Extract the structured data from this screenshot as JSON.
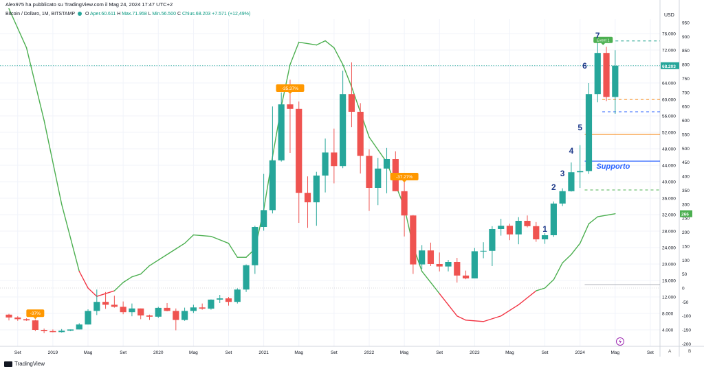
{
  "header": {
    "publisher_line": "Alex975 ha pubblicato su TradingView.com il Mag 24, 2024 17:47 UTC+2",
    "symbol": "Bitcoin / Dollaro, 1M, BITSTAMP",
    "ohlc": [
      {
        "k": "O",
        "v": "Aper.60.611"
      },
      {
        "k": "H",
        "v": "Max.71.958"
      },
      {
        "k": "L",
        "v": "Min.56.500"
      },
      {
        "k": "C",
        "v": "Chius.68.203"
      },
      {
        "k": "",
        "v": "+7.571 (+12,49%)"
      }
    ]
  },
  "footer": {
    "brand": "TradingView"
  },
  "axis_buttons": {
    "auto": "A",
    "log": "B"
  },
  "colors": {
    "up": "#26a69a",
    "down": "#ef5350",
    "ma_up": "#4caf50",
    "ma_down": "#f23645",
    "support": "#2962ff",
    "resistance": "#f57c00",
    "label": "#1e3a8a",
    "ath": "#089981"
  },
  "chart_data": {
    "type": "candlestick",
    "interval": "1M",
    "currency": "USD",
    "left_axis_label": "USD",
    "x_ticks": [
      {
        "label": "Set",
        "date": "2018-09"
      },
      {
        "label": "2019",
        "date": "2019-01"
      },
      {
        "label": "Mag",
        "date": "2019-05"
      },
      {
        "label": "Set",
        "date": "2019-09"
      },
      {
        "label": "2020",
        "date": "2020-01"
      },
      {
        "label": "Mag",
        "date": "2020-05"
      },
      {
        "label": "Set",
        "date": "2020-09"
      },
      {
        "label": "2021",
        "date": "2021-01"
      },
      {
        "label": "Mag",
        "date": "2021-05"
      },
      {
        "label": "Set",
        "date": "2021-09"
      },
      {
        "label": "2022",
        "date": "2022-01"
      },
      {
        "label": "Mag",
        "date": "2022-05"
      },
      {
        "label": "Set",
        "date": "2022-09"
      },
      {
        "label": "2023",
        "date": "2023-01"
      },
      {
        "label": "Mag",
        "date": "2023-05"
      },
      {
        "label": "Set",
        "date": "2023-09"
      },
      {
        "label": "2024",
        "date": "2024-01"
      },
      {
        "label": "Mag",
        "date": "2024-05"
      },
      {
        "label": "Set",
        "date": "2024-09"
      }
    ],
    "price_ticks": [
      4000,
      8000,
      12000,
      16000,
      20000,
      24000,
      28000,
      32000,
      36000,
      40000,
      44000,
      48000,
      52000,
      56000,
      60000,
      64000,
      68000,
      72000,
      76000
    ],
    "price_tick_labels": [
      "4.000",
      "8.000",
      "12.000",
      "16.000",
      "20.000",
      "24.000",
      "28.000",
      "32.000",
      "36.000",
      "40.000",
      "44.000",
      "48.000",
      "52.000",
      "56.000",
      "60.000",
      "64.000",
      "68.000",
      "72.000",
      "76.000"
    ],
    "price_range": [
      0,
      80000
    ],
    "oscillator_ticks": [
      -200,
      -150,
      -100,
      -50,
      0,
      50,
      100,
      150,
      200,
      250,
      300,
      350,
      400,
      450,
      500,
      550,
      600,
      650,
      700,
      750,
      800,
      850,
      900,
      950
    ],
    "oscillator_range": [
      -230,
      1000
    ],
    "oscillator_last": {
      "label": "266",
      "value": 266
    },
    "last_price": {
      "label": "68.203",
      "value": 68203
    },
    "candles": [
      {
        "t": "2018-08",
        "o": 7700,
        "h": 7900,
        "l": 6300,
        "c": 7000
      },
      {
        "t": "2018-09",
        "o": 7000,
        "h": 7300,
        "l": 6200,
        "c": 6600
      },
      {
        "t": "2018-10",
        "o": 6600,
        "h": 6800,
        "l": 6200,
        "c": 6300
      },
      {
        "t": "2018-11",
        "o": 6300,
        "h": 6500,
        "l": 3700,
        "c": 4000
      },
      {
        "t": "2018-12",
        "o": 4000,
        "h": 4300,
        "l": 3200,
        "c": 3700
      },
      {
        "t": "2019-01",
        "o": 3700,
        "h": 4100,
        "l": 3400,
        "c": 3450
      },
      {
        "t": "2019-02",
        "o": 3450,
        "h": 4200,
        "l": 3350,
        "c": 3800
      },
      {
        "t": "2019-03",
        "o": 3800,
        "h": 4100,
        "l": 3700,
        "c": 4100
      },
      {
        "t": "2019-04",
        "o": 4100,
        "h": 5600,
        "l": 4100,
        "c": 5300
      },
      {
        "t": "2019-05",
        "o": 5300,
        "h": 9000,
        "l": 5300,
        "c": 8600
      },
      {
        "t": "2019-06",
        "o": 8600,
        "h": 13800,
        "l": 7600,
        "c": 10800
      },
      {
        "t": "2019-07",
        "o": 10800,
        "h": 13200,
        "l": 9100,
        "c": 10100
      },
      {
        "t": "2019-08",
        "o": 10100,
        "h": 12300,
        "l": 9400,
        "c": 9600
      },
      {
        "t": "2019-09",
        "o": 9600,
        "h": 10900,
        "l": 7800,
        "c": 8300
      },
      {
        "t": "2019-10",
        "o": 8300,
        "h": 10400,
        "l": 7300,
        "c": 9200
      },
      {
        "t": "2019-11",
        "o": 9200,
        "h": 9200,
        "l": 6600,
        "c": 7500
      },
      {
        "t": "2019-12",
        "o": 7500,
        "h": 7700,
        "l": 6400,
        "c": 7200
      },
      {
        "t": "2020-01",
        "o": 7200,
        "h": 9600,
        "l": 6900,
        "c": 9350
      },
      {
        "t": "2020-02",
        "o": 9350,
        "h": 10500,
        "l": 8500,
        "c": 8600
      },
      {
        "t": "2020-03",
        "o": 8600,
        "h": 9200,
        "l": 3900,
        "c": 6400
      },
      {
        "t": "2020-04",
        "o": 6400,
        "h": 9400,
        "l": 6200,
        "c": 8600
      },
      {
        "t": "2020-05",
        "o": 8600,
        "h": 10100,
        "l": 8100,
        "c": 9450
      },
      {
        "t": "2020-06",
        "o": 9450,
        "h": 10400,
        "l": 8900,
        "c": 9150
      },
      {
        "t": "2020-07",
        "o": 9150,
        "h": 11400,
        "l": 8900,
        "c": 11350
      },
      {
        "t": "2020-08",
        "o": 11350,
        "h": 12500,
        "l": 10500,
        "c": 11650
      },
      {
        "t": "2020-09",
        "o": 11650,
        "h": 12000,
        "l": 9900,
        "c": 10800
      },
      {
        "t": "2020-10",
        "o": 10800,
        "h": 14100,
        "l": 10400,
        "c": 13800
      },
      {
        "t": "2020-11",
        "o": 13800,
        "h": 19900,
        "l": 13200,
        "c": 19700
      },
      {
        "t": "2020-12",
        "o": 19700,
        "h": 29300,
        "l": 17600,
        "c": 29000
      },
      {
        "t": "2021-01",
        "o": 29000,
        "h": 41900,
        "l": 28100,
        "c": 33100
      },
      {
        "t": "2021-02",
        "o": 33100,
        "h": 58300,
        "l": 32300,
        "c": 45200
      },
      {
        "t": "2021-03",
        "o": 45200,
        "h": 61700,
        "l": 44900,
        "c": 58800
      },
      {
        "t": "2021-04",
        "o": 58800,
        "h": 64800,
        "l": 47000,
        "c": 57700
      },
      {
        "t": "2021-05",
        "o": 57700,
        "h": 59500,
        "l": 30000,
        "c": 37300
      },
      {
        "t": "2021-06",
        "o": 37300,
        "h": 41300,
        "l": 28800,
        "c": 35000
      },
      {
        "t": "2021-07",
        "o": 35000,
        "h": 42400,
        "l": 29300,
        "c": 41500
      },
      {
        "t": "2021-08",
        "o": 41500,
        "h": 50500,
        "l": 37400,
        "c": 47100
      },
      {
        "t": "2021-09",
        "o": 47100,
        "h": 52900,
        "l": 39600,
        "c": 43800
      },
      {
        "t": "2021-10",
        "o": 43800,
        "h": 67000,
        "l": 43300,
        "c": 61300
      },
      {
        "t": "2021-11",
        "o": 61300,
        "h": 69000,
        "l": 53300,
        "c": 57000
      },
      {
        "t": "2021-12",
        "o": 57000,
        "h": 59100,
        "l": 42000,
        "c": 46300
      },
      {
        "t": "2022-01",
        "o": 46300,
        "h": 47900,
        "l": 32900,
        "c": 38500
      },
      {
        "t": "2022-02",
        "o": 38500,
        "h": 45800,
        "l": 34300,
        "c": 43200
      },
      {
        "t": "2022-03",
        "o": 43200,
        "h": 48200,
        "l": 37200,
        "c": 45500
      },
      {
        "t": "2022-04",
        "o": 45500,
        "h": 47400,
        "l": 37700,
        "c": 37700
      },
      {
        "t": "2022-05",
        "o": 37700,
        "h": 40000,
        "l": 26700,
        "c": 31800
      },
      {
        "t": "2022-06",
        "o": 31800,
        "h": 31900,
        "l": 17600,
        "c": 19900
      },
      {
        "t": "2022-07",
        "o": 19900,
        "h": 24600,
        "l": 18800,
        "c": 23300
      },
      {
        "t": "2022-08",
        "o": 23300,
        "h": 25200,
        "l": 19500,
        "c": 20000
      },
      {
        "t": "2022-09",
        "o": 20000,
        "h": 22800,
        "l": 18200,
        "c": 19400
      },
      {
        "t": "2022-10",
        "o": 19400,
        "h": 21000,
        "l": 18200,
        "c": 20500
      },
      {
        "t": "2022-11",
        "o": 20500,
        "h": 21500,
        "l": 15500,
        "c": 17200
      },
      {
        "t": "2022-12",
        "o": 17200,
        "h": 18400,
        "l": 16300,
        "c": 16500
      },
      {
        "t": "2023-01",
        "o": 16500,
        "h": 23900,
        "l": 16500,
        "c": 23100
      },
      {
        "t": "2023-02",
        "o": 23100,
        "h": 25300,
        "l": 21400,
        "c": 23200
      },
      {
        "t": "2023-03",
        "o": 23200,
        "h": 29200,
        "l": 19500,
        "c": 28500
      },
      {
        "t": "2023-04",
        "o": 28500,
        "h": 31000,
        "l": 26900,
        "c": 29300
      },
      {
        "t": "2023-05",
        "o": 29300,
        "h": 29800,
        "l": 25800,
        "c": 27200
      },
      {
        "t": "2023-06",
        "o": 27200,
        "h": 31400,
        "l": 24800,
        "c": 30500
      },
      {
        "t": "2023-07",
        "o": 30500,
        "h": 31800,
        "l": 28900,
        "c": 29200
      },
      {
        "t": "2023-08",
        "o": 29200,
        "h": 30200,
        "l": 25400,
        "c": 26000
      },
      {
        "t": "2023-09",
        "o": 26000,
        "h": 27500,
        "l": 24900,
        "c": 27000
      },
      {
        "t": "2023-10",
        "o": 27000,
        "h": 35200,
        "l": 26600,
        "c": 34700
      },
      {
        "t": "2023-11",
        "o": 34700,
        "h": 38400,
        "l": 34100,
        "c": 37700
      },
      {
        "t": "2023-12",
        "o": 37700,
        "h": 44700,
        "l": 37600,
        "c": 42300
      },
      {
        "t": "2024-01",
        "o": 42300,
        "h": 48900,
        "l": 38500,
        "c": 42600
      },
      {
        "t": "2024-02",
        "o": 42600,
        "h": 64000,
        "l": 41900,
        "c": 61300
      },
      {
        "t": "2024-03",
        "o": 61300,
        "h": 73800,
        "l": 59300,
        "c": 71300
      },
      {
        "t": "2024-04",
        "o": 71300,
        "h": 72800,
        "l": 59600,
        "c": 60600
      },
      {
        "t": "2024-05",
        "o": 60600,
        "h": 71958,
        "l": 56500,
        "c": 68203
      }
    ],
    "oscillator_line": [
      {
        "t": "2018-08",
        "v": 1000
      },
      {
        "t": "2018-10",
        "v": 860
      },
      {
        "t": "2018-12",
        "v": 600
      },
      {
        "t": "2019-02",
        "v": 300
      },
      {
        "t": "2019-04",
        "v": 60
      },
      {
        "t": "2019-05",
        "v": 0
      },
      {
        "t": "2019-06",
        "v": -30
      },
      {
        "t": "2019-08",
        "v": -10
      },
      {
        "t": "2019-09",
        "v": 20
      },
      {
        "t": "2019-10",
        "v": 40
      },
      {
        "t": "2019-11",
        "v": 50
      },
      {
        "t": "2019-12",
        "v": 80
      },
      {
        "t": "2020-02",
        "v": 120
      },
      {
        "t": "2020-04",
        "v": 160
      },
      {
        "t": "2020-05",
        "v": 190
      },
      {
        "t": "2020-07",
        "v": 185
      },
      {
        "t": "2020-09",
        "v": 160
      },
      {
        "t": "2020-10",
        "v": 110
      },
      {
        "t": "2020-11",
        "v": 110
      },
      {
        "t": "2020-12",
        "v": 140
      },
      {
        "t": "2021-01",
        "v": 280
      },
      {
        "t": "2021-02",
        "v": 470
      },
      {
        "t": "2021-03",
        "v": 650
      },
      {
        "t": "2021-04",
        "v": 800
      },
      {
        "t": "2021-05",
        "v": 880
      },
      {
        "t": "2021-07",
        "v": 870
      },
      {
        "t": "2021-08",
        "v": 885
      },
      {
        "t": "2021-09",
        "v": 860
      },
      {
        "t": "2021-10",
        "v": 800
      },
      {
        "t": "2021-11",
        "v": 720
      },
      {
        "t": "2021-12",
        "v": 630
      },
      {
        "t": "2022-01",
        "v": 540
      },
      {
        "t": "2022-03",
        "v": 450
      },
      {
        "t": "2022-05",
        "v": 290
      },
      {
        "t": "2022-06",
        "v": 150
      },
      {
        "t": "2022-07",
        "v": 60
      },
      {
        "t": "2022-08",
        "v": 20
      },
      {
        "t": "2022-09",
        "v": -20
      },
      {
        "t": "2022-10",
        "v": -60
      },
      {
        "t": "2022-11",
        "v": -100
      },
      {
        "t": "2022-12",
        "v": -115
      },
      {
        "t": "2023-02",
        "v": -120
      },
      {
        "t": "2023-04",
        "v": -100
      },
      {
        "t": "2023-06",
        "v": -60
      },
      {
        "t": "2023-08",
        "v": -10
      },
      {
        "t": "2023-09",
        "v": 0
      },
      {
        "t": "2023-10",
        "v": 30
      },
      {
        "t": "2023-11",
        "v": 90
      },
      {
        "t": "2023-12",
        "v": 120
      },
      {
        "t": "2024-01",
        "v": 160
      },
      {
        "t": "2024-02",
        "v": 230
      },
      {
        "t": "2024-03",
        "v": 255
      },
      {
        "t": "2024-05",
        "v": 266
      }
    ],
    "oscillator_color_switch": {
      "red_from": "2019-04",
      "red_to": "2019-08",
      "red2_from": "2022-09",
      "red2_to": "2023-08"
    },
    "percent_labels": [
      {
        "t": "2018-11",
        "price": 7300,
        "text": "-37%"
      },
      {
        "t": "2021-04",
        "price": 62000,
        "text": "-35.37%"
      },
      {
        "t": "2022-05",
        "price": 40500,
        "text": "-37.27%"
      }
    ],
    "ath_label": {
      "t": "2024-03",
      "price": 75200,
      "text": "Event 1"
    },
    "wave_labels": [
      {
        "t": "2023-09",
        "price": 27800,
        "text": "1"
      },
      {
        "t": "2023-10",
        "price": 38000,
        "text": "2"
      },
      {
        "t": "2023-11",
        "price": 41300,
        "text": "3"
      },
      {
        "t": "2023-12",
        "price": 46800,
        "text": "4"
      },
      {
        "t": "2024-01",
        "price": 52500,
        "text": "5"
      },
      {
        "t": "2024-02",
        "price": 67500,
        "text": "6"
      },
      {
        "t": "2024-03",
        "price": 74800,
        "text": "7"
      }
    ],
    "support": {
      "price": 45000,
      "text": "Supporto",
      "from": "2024-02"
    },
    "resistance_line": {
      "price": 51500,
      "from": "2024-02"
    },
    "dashed_levels": [
      {
        "price": 60000,
        "color": "#f57c00",
        "from": "2024-04"
      },
      {
        "price": 57000,
        "color": "#2962ff",
        "from": "2024-04"
      },
      {
        "price": 38000,
        "color": "#4caf50",
        "from": "2024-02"
      },
      {
        "price": 74200,
        "color": "#089981",
        "from": "2024-03"
      }
    ],
    "grey_level": {
      "price": 15000,
      "from": "2024-02"
    }
  }
}
